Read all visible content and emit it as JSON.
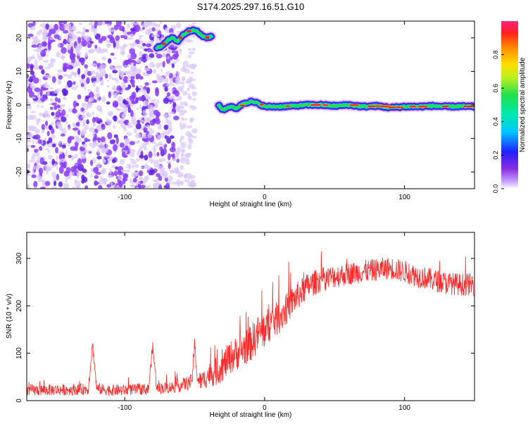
{
  "title": "S174.2025.297.16.51.G10",
  "colors": {
    "snr_line": "#ff2a2a",
    "axis": "#000000",
    "noise": "#8a3cff",
    "noise_light": "#d8c6ff",
    "track_red": "#ff2020",
    "track_green": "#22e04a",
    "track_blue": "#1a2cff"
  },
  "chart_data": [
    {
      "type": "heatmap",
      "title": "S174.2025.297.16.51.G10",
      "xlabel": "Height of straight line (km)",
      "ylabel": "Frequency (Hz)",
      "xlim": [
        -170,
        150
      ],
      "ylim": [
        -25,
        25
      ],
      "xticks": [
        -100,
        0,
        100
      ],
      "xtick_labels": [
        "-100",
        "0",
        "100"
      ],
      "yticks": [
        -20,
        -10,
        0,
        10,
        20
      ],
      "ytick_labels": [
        "-20",
        "-10",
        "0",
        "10",
        "20"
      ],
      "grid": false,
      "colorbar": {
        "label": "Normalized spectral amplitude",
        "range": [
          0,
          1
        ],
        "ticks": [
          0.0,
          0.2,
          0.4,
          0.6,
          0.8
        ],
        "tick_labels": [
          "0.0",
          "0.2",
          "0.4",
          "0.6",
          "0.8"
        ],
        "colormap": "rainbow (white at 0 → purple → blue → cyan → green → yellow → orange → red)"
      },
      "features": {
        "broadband_noise_x_range": [
          -170,
          -62
        ],
        "sparse_noise_x_range": [
          -62,
          -50
        ],
        "upper_track": {
          "x": [
            -77,
            -74,
            -70,
            -66,
            -62,
            -58,
            -54,
            -50,
            -46,
            -42,
            -38
          ],
          "y": [
            17,
            17.5,
            19,
            20,
            19,
            21,
            22,
            22.5,
            21,
            20,
            20.5
          ],
          "amplitude": 0.55
        },
        "main_track": {
          "x": [
            -33,
            -30,
            -25,
            -20,
            -15,
            -10,
            -5,
            0,
            10,
            20,
            30,
            40,
            50,
            60,
            70,
            80,
            90,
            100,
            110,
            120,
            130,
            140,
            150
          ],
          "y": [
            0,
            -1.5,
            -0.5,
            -1,
            0.5,
            1,
            0.5,
            -0.5,
            -0.5,
            -0.3,
            0,
            0,
            -0.3,
            0,
            -0.5,
            -0.3,
            -0.8,
            -0.5,
            -0.5,
            -0.3,
            -0.5,
            -0.4,
            -0.5
          ],
          "amplitude": 0.9
        }
      }
    },
    {
      "type": "line",
      "xlabel": "Height of straight line (km)",
      "ylabel": "SNR (10 * v/v)",
      "xlim": [
        -170,
        150
      ],
      "ylim": [
        0,
        355
      ],
      "xticks": [
        -100,
        0,
        100
      ],
      "xtick_labels": [
        "-100",
        "0",
        "100"
      ],
      "yticks": [
        0,
        100,
        200,
        300
      ],
      "ytick_labels": [
        "0",
        "100",
        "200",
        "300"
      ],
      "grid": false,
      "series": [
        {
          "color": "#ff2a2a",
          "x": [
            -170,
            -160,
            -150,
            -140,
            -130,
            -126,
            -123,
            -120,
            -110,
            -100,
            -90,
            -83,
            -80,
            -77,
            -70,
            -60,
            -52,
            -50,
            -48,
            -45,
            -40,
            -35,
            -30,
            -25,
            -20,
            -15,
            -10,
            -5,
            0,
            5,
            10,
            15,
            20,
            25,
            30,
            35,
            40,
            50,
            60,
            70,
            80,
            90,
            100,
            110,
            120,
            130,
            140,
            150
          ],
          "y": [
            22,
            22,
            23,
            23,
            24,
            24,
            120,
            25,
            22,
            22,
            24,
            24,
            115,
            26,
            27,
            32,
            40,
            118,
            45,
            40,
            55,
            60,
            72,
            90,
            100,
            110,
            120,
            140,
            150,
            165,
            175,
            190,
            210,
            225,
            240,
            248,
            255,
            262,
            268,
            272,
            276,
            280,
            272,
            262,
            255,
            248,
            245,
            245
          ],
          "noise_amplitude": [
            12,
            12,
            12,
            12,
            12,
            12,
            12,
            12,
            12,
            12,
            12,
            12,
            12,
            12,
            12,
            14,
            16,
            16,
            18,
            20,
            25,
            30,
            32,
            35,
            36,
            38,
            38,
            40,
            40,
            38,
            36,
            34,
            32,
            30,
            28,
            27,
            26,
            25,
            24,
            24,
            24,
            24,
            24,
            24,
            24,
            24,
            24,
            24
          ]
        }
      ]
    }
  ]
}
